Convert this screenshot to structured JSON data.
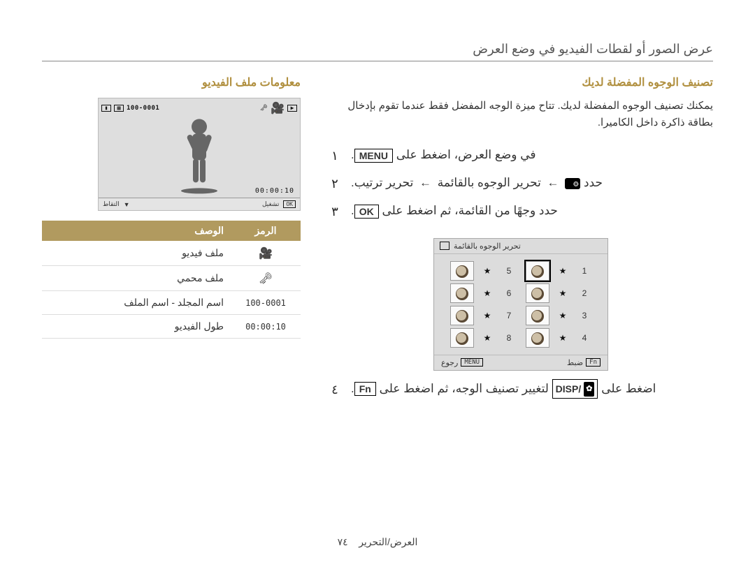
{
  "page": {
    "header": "عرض الصور أو لقطات الفيديو في وضع العرض",
    "footer_section": "العرض/التحرير",
    "footer_page": "٧٤"
  },
  "right": {
    "title": "معلومات ملف الفيديو",
    "screen": {
      "folder_no": "100-0001",
      "timestamp": "00:00:10",
      "bottom_ok": "OK",
      "bottom_play": "تشغيل",
      "bottom_capture": "التقاط"
    },
    "table": {
      "header_symbol": "الرمز",
      "header_desc": "الوصف",
      "rows": [
        {
          "sym_glyph": "🎥",
          "sym_text": "",
          "desc": "ملف فيديو"
        },
        {
          "sym_glyph": "🗝",
          "sym_text": "",
          "desc": "ملف محمي"
        },
        {
          "sym_glyph": "",
          "sym_text": "100-0001",
          "desc": "اسم المجلد - اسم الملف"
        },
        {
          "sym_glyph": "",
          "sym_text": "00:00:10",
          "desc": "طول الفيديو"
        }
      ]
    }
  },
  "left": {
    "title": "تصنيف الوجوه المفضلة لديك",
    "intro": "يمكنك تصنيف الوجوه المفضلة لديك. تتاح ميزة الوجه المفضل فقط عندما تقوم بإدخال بطاقة ذاكرة داخل الكاميرا.",
    "steps": [
      {
        "num": "١",
        "html": "في وضع العرض، اضغط على [MENU]."
      },
      {
        "num": "٢",
        "html": "حدد ICON_CFG ← تحرير الوجوه بالقائمة ← تحرير ترتيب."
      },
      {
        "num": "٣",
        "html": "حدد وجهًا من القائمة، ثم اضغط على [OK]."
      }
    ],
    "step4": {
      "num": "٤",
      "html": "اضغط على [DISP_BTN] لتغيير تصنيف الوجه، ثم اضغط على [Fn]."
    },
    "kbd": {
      "menu": "MENU",
      "ok": "OK",
      "fn": "Fn",
      "disp": "DISP"
    },
    "face_screen": {
      "title": "تحرير الوجوه بالقائمة",
      "bottom_back_btn": "MENU",
      "bottom_back": "رجوع",
      "bottom_set_btn": "Fn",
      "bottom_set": "ضبط",
      "cells": [
        {
          "n": "1",
          "star": "★",
          "sel": true
        },
        {
          "n": "5",
          "star": "★"
        },
        {
          "n": "2",
          "star": "★"
        },
        {
          "n": "6",
          "star": "★"
        },
        {
          "n": "3",
          "star": "★"
        },
        {
          "n": "7",
          "star": "★"
        },
        {
          "n": "4",
          "star": "★"
        },
        {
          "n": "8",
          "star": "★"
        }
      ]
    }
  },
  "style": {
    "accent": "#b08f3e",
    "table_header_bg": "#b19a5f",
    "screen_bg": "#dedede"
  }
}
